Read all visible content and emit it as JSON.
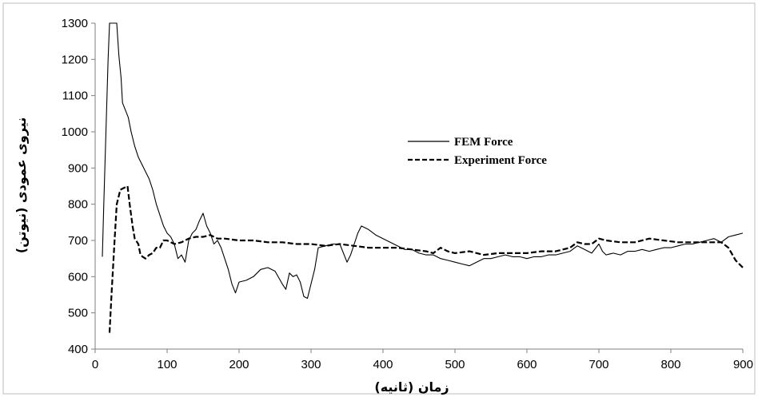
{
  "chart_data": {
    "type": "line",
    "title": "",
    "xlabel": "زمان (ثانیه)",
    "ylabel": "نیروی عمودی (نیوتن)",
    "xlim": [
      0,
      900
    ],
    "ylim": [
      400,
      1300
    ],
    "xticks": [
      0,
      100,
      200,
      300,
      400,
      500,
      600,
      700,
      800,
      900
    ],
    "yticks": [
      400,
      500,
      600,
      700,
      800,
      900,
      1000,
      1100,
      1200,
      1300
    ],
    "grid": false,
    "legend_position": "center-right",
    "series": [
      {
        "name": "FEM Force",
        "style": "solid",
        "color": "#000000",
        "points": [
          [
            10,
            655
          ],
          [
            12,
            800
          ],
          [
            15,
            1000
          ],
          [
            18,
            1200
          ],
          [
            20,
            1300
          ],
          [
            30,
            1300
          ],
          [
            33,
            1210
          ],
          [
            36,
            1150
          ],
          [
            38,
            1080
          ],
          [
            42,
            1060
          ],
          [
            46,
            1040
          ],
          [
            50,
            1000
          ],
          [
            55,
            960
          ],
          [
            60,
            930
          ],
          [
            65,
            910
          ],
          [
            70,
            890
          ],
          [
            75,
            870
          ],
          [
            80,
            840
          ],
          [
            85,
            800
          ],
          [
            90,
            770
          ],
          [
            95,
            740
          ],
          [
            100,
            720
          ],
          [
            105,
            710
          ],
          [
            110,
            690
          ],
          [
            115,
            650
          ],
          [
            120,
            660
          ],
          [
            125,
            640
          ],
          [
            130,
            700
          ],
          [
            135,
            720
          ],
          [
            140,
            730
          ],
          [
            145,
            755
          ],
          [
            150,
            775
          ],
          [
            155,
            740
          ],
          [
            160,
            720
          ],
          [
            165,
            690
          ],
          [
            170,
            700
          ],
          [
            175,
            680
          ],
          [
            180,
            650
          ],
          [
            185,
            620
          ],
          [
            190,
            580
          ],
          [
            195,
            555
          ],
          [
            200,
            585
          ],
          [
            210,
            590
          ],
          [
            220,
            600
          ],
          [
            230,
            620
          ],
          [
            240,
            625
          ],
          [
            250,
            615
          ],
          [
            260,
            580
          ],
          [
            265,
            565
          ],
          [
            270,
            610
          ],
          [
            275,
            600
          ],
          [
            280,
            605
          ],
          [
            285,
            585
          ],
          [
            290,
            545
          ],
          [
            295,
            540
          ],
          [
            300,
            580
          ],
          [
            305,
            620
          ],
          [
            310,
            680
          ],
          [
            320,
            685
          ],
          [
            330,
            690
          ],
          [
            340,
            690
          ],
          [
            350,
            640
          ],
          [
            355,
            660
          ],
          [
            360,
            690
          ],
          [
            365,
            720
          ],
          [
            370,
            740
          ],
          [
            380,
            730
          ],
          [
            390,
            715
          ],
          [
            400,
            705
          ],
          [
            410,
            695
          ],
          [
            420,
            685
          ],
          [
            430,
            675
          ],
          [
            440,
            675
          ],
          [
            450,
            665
          ],
          [
            460,
            660
          ],
          [
            470,
            660
          ],
          [
            480,
            650
          ],
          [
            490,
            645
          ],
          [
            500,
            640
          ],
          [
            510,
            635
          ],
          [
            520,
            630
          ],
          [
            530,
            640
          ],
          [
            540,
            650
          ],
          [
            550,
            650
          ],
          [
            560,
            655
          ],
          [
            570,
            660
          ],
          [
            580,
            655
          ],
          [
            590,
            655
          ],
          [
            600,
            650
          ],
          [
            610,
            655
          ],
          [
            620,
            655
          ],
          [
            630,
            660
          ],
          [
            640,
            660
          ],
          [
            650,
            665
          ],
          [
            660,
            670
          ],
          [
            670,
            685
          ],
          [
            680,
            675
          ],
          [
            690,
            665
          ],
          [
            700,
            690
          ],
          [
            705,
            670
          ],
          [
            710,
            660
          ],
          [
            720,
            665
          ],
          [
            730,
            660
          ],
          [
            740,
            670
          ],
          [
            750,
            670
          ],
          [
            760,
            675
          ],
          [
            770,
            670
          ],
          [
            780,
            675
          ],
          [
            790,
            680
          ],
          [
            800,
            680
          ],
          [
            810,
            685
          ],
          [
            820,
            690
          ],
          [
            830,
            690
          ],
          [
            840,
            695
          ],
          [
            850,
            700
          ],
          [
            860,
            705
          ],
          [
            870,
            695
          ],
          [
            880,
            710
          ],
          [
            890,
            715
          ],
          [
            900,
            720
          ]
        ]
      },
      {
        "name": "Experiment Force",
        "style": "dashed",
        "color": "#000000",
        "points": [
          [
            20,
            445
          ],
          [
            23,
            560
          ],
          [
            27,
            700
          ],
          [
            30,
            800
          ],
          [
            35,
            840
          ],
          [
            40,
            845
          ],
          [
            45,
            850
          ],
          [
            48,
            800
          ],
          [
            52,
            740
          ],
          [
            55,
            705
          ],
          [
            60,
            690
          ],
          [
            63,
            660
          ],
          [
            66,
            655
          ],
          [
            70,
            650
          ],
          [
            75,
            660
          ],
          [
            80,
            665
          ],
          [
            85,
            680
          ],
          [
            90,
            680
          ],
          [
            95,
            700
          ],
          [
            100,
            700
          ],
          [
            110,
            690
          ],
          [
            120,
            695
          ],
          [
            130,
            705
          ],
          [
            140,
            710
          ],
          [
            150,
            710
          ],
          [
            160,
            715
          ],
          [
            170,
            705
          ],
          [
            180,
            705
          ],
          [
            200,
            700
          ],
          [
            220,
            700
          ],
          [
            240,
            695
          ],
          [
            260,
            695
          ],
          [
            280,
            690
          ],
          [
            300,
            690
          ],
          [
            320,
            685
          ],
          [
            340,
            690
          ],
          [
            360,
            685
          ],
          [
            380,
            680
          ],
          [
            400,
            680
          ],
          [
            420,
            680
          ],
          [
            440,
            675
          ],
          [
            460,
            670
          ],
          [
            470,
            665
          ],
          [
            480,
            680
          ],
          [
            490,
            670
          ],
          [
            500,
            665
          ],
          [
            520,
            670
          ],
          [
            540,
            660
          ],
          [
            560,
            665
          ],
          [
            580,
            665
          ],
          [
            600,
            665
          ],
          [
            620,
            670
          ],
          [
            640,
            670
          ],
          [
            660,
            680
          ],
          [
            670,
            695
          ],
          [
            680,
            690
          ],
          [
            690,
            690
          ],
          [
            700,
            705
          ],
          [
            710,
            700
          ],
          [
            730,
            695
          ],
          [
            750,
            695
          ],
          [
            770,
            705
          ],
          [
            790,
            700
          ],
          [
            810,
            695
          ],
          [
            830,
            695
          ],
          [
            850,
            695
          ],
          [
            870,
            695
          ],
          [
            880,
            680
          ],
          [
            890,
            645
          ],
          [
            900,
            625
          ]
        ]
      }
    ]
  }
}
